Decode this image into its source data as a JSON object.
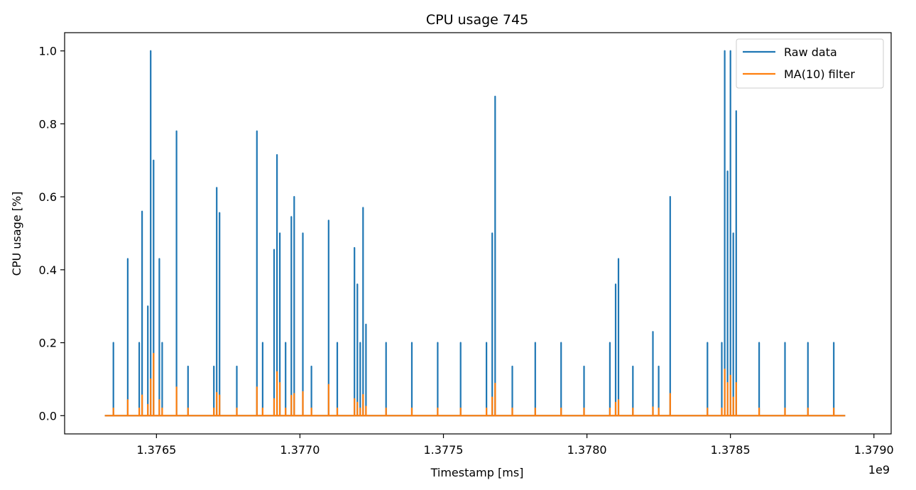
{
  "chart_data": {
    "type": "line",
    "title": "CPU usage 745",
    "xlabel": "Timestamp [ms]",
    "ylabel": "CPU usage [%]",
    "x_offset_label": "1e9",
    "xlim": [
      1.37618,
      1.37906
    ],
    "ylim": [
      -0.05,
      1.05
    ],
    "x_start": 1.37632,
    "x_end": 1.3789,
    "x_ticks": [
      1.3765,
      1.377,
      1.3775,
      1.378,
      1.3785,
      1.379
    ],
    "x_tick_labels": [
      "1.3765",
      "1.3770",
      "1.3775",
      "1.3780",
      "1.3785",
      "1.3790"
    ],
    "y_ticks": [
      0.0,
      0.2,
      0.4,
      0.6,
      0.8,
      1.0
    ],
    "y_tick_labels": [
      "0.0",
      "0.2",
      "0.4",
      "0.6",
      "0.8",
      "1.0"
    ],
    "legend_position": "top-right",
    "grid": false,
    "series": [
      {
        "name": "Raw data",
        "color": "#1f77b4",
        "spikes": [
          [
            1.37635,
            0.2
          ],
          [
            1.3764,
            0.43
          ],
          [
            1.37644,
            0.2
          ],
          [
            1.37645,
            0.56
          ],
          [
            1.37647,
            0.3
          ],
          [
            1.37648,
            0.5
          ],
          [
            1.37648,
            1.0
          ],
          [
            1.37649,
            0.7
          ],
          [
            1.37651,
            0.43
          ],
          [
            1.37652,
            0.2
          ],
          [
            1.37657,
            0.78
          ],
          [
            1.37661,
            0.135
          ],
          [
            1.3767,
            0.135
          ],
          [
            1.37671,
            0.625
          ],
          [
            1.37672,
            0.556
          ],
          [
            1.37678,
            0.135
          ],
          [
            1.37685,
            0.78
          ],
          [
            1.37687,
            0.2
          ],
          [
            1.37691,
            0.455
          ],
          [
            1.37692,
            0.715
          ],
          [
            1.37693,
            0.5
          ],
          [
            1.37695,
            0.2
          ],
          [
            1.37697,
            0.545
          ],
          [
            1.37698,
            0.6
          ],
          [
            1.37701,
            0.5
          ],
          [
            1.37704,
            0.135
          ],
          [
            1.3771,
            0.535
          ],
          [
            1.37713,
            0.2
          ],
          [
            1.37719,
            0.46
          ],
          [
            1.3772,
            0.36
          ],
          [
            1.37721,
            0.2
          ],
          [
            1.37722,
            0.57
          ],
          [
            1.37722,
            0.455
          ],
          [
            1.37723,
            0.25
          ],
          [
            1.3773,
            0.2
          ],
          [
            1.37739,
            0.2
          ],
          [
            1.37748,
            0.2
          ],
          [
            1.37756,
            0.2
          ],
          [
            1.37765,
            0.2
          ],
          [
            1.37767,
            0.5
          ],
          [
            1.37768,
            0.875
          ],
          [
            1.37774,
            0.135
          ],
          [
            1.37782,
            0.2
          ],
          [
            1.37791,
            0.2
          ],
          [
            1.37799,
            0.135
          ],
          [
            1.37808,
            0.2
          ],
          [
            1.3781,
            0.36
          ],
          [
            1.37811,
            0.43
          ],
          [
            1.37816,
            0.135
          ],
          [
            1.37823,
            0.23
          ],
          [
            1.37825,
            0.135
          ],
          [
            1.37829,
            0.6
          ],
          [
            1.37842,
            0.2
          ],
          [
            1.37847,
            0.2
          ],
          [
            1.37848,
            1.0
          ],
          [
            1.37849,
            0.67
          ],
          [
            1.3785,
            1.0
          ],
          [
            1.37851,
            0.5
          ],
          [
            1.37851,
            0.2
          ],
          [
            1.37852,
            0.835
          ],
          [
            1.3786,
            0.2
          ],
          [
            1.37869,
            0.2
          ],
          [
            1.37877,
            0.2
          ],
          [
            1.37886,
            0.2
          ]
        ]
      },
      {
        "name": "MA(10) filter",
        "color": "#ff7f0e",
        "spikes": [
          [
            1.37635,
            0.02
          ],
          [
            1.3764,
            0.043
          ],
          [
            1.37644,
            0.02
          ],
          [
            1.37645,
            0.056
          ],
          [
            1.37647,
            0.03
          ],
          [
            1.37648,
            0.05
          ],
          [
            1.37648,
            0.1
          ],
          [
            1.37649,
            0.17
          ],
          [
            1.37651,
            0.043
          ],
          [
            1.37652,
            0.02
          ],
          [
            1.37657,
            0.078
          ],
          [
            1.37661,
            0.02
          ],
          [
            1.3767,
            0.02
          ],
          [
            1.37671,
            0.063
          ],
          [
            1.37672,
            0.056
          ],
          [
            1.37678,
            0.02
          ],
          [
            1.37685,
            0.078
          ],
          [
            1.37687,
            0.02
          ],
          [
            1.37691,
            0.046
          ],
          [
            1.37692,
            0.12
          ],
          [
            1.37693,
            0.09
          ],
          [
            1.37695,
            0.02
          ],
          [
            1.37697,
            0.055
          ],
          [
            1.37698,
            0.06
          ],
          [
            1.37701,
            0.065
          ],
          [
            1.37704,
            0.02
          ],
          [
            1.3771,
            0.085
          ],
          [
            1.37713,
            0.02
          ],
          [
            1.37719,
            0.046
          ],
          [
            1.3772,
            0.036
          ],
          [
            1.37721,
            0.02
          ],
          [
            1.37722,
            0.057
          ],
          [
            1.37722,
            0.046
          ],
          [
            1.37723,
            0.025
          ],
          [
            1.3773,
            0.02
          ],
          [
            1.37739,
            0.02
          ],
          [
            1.37748,
            0.02
          ],
          [
            1.37756,
            0.02
          ],
          [
            1.37765,
            0.02
          ],
          [
            1.37767,
            0.05
          ],
          [
            1.37768,
            0.088
          ],
          [
            1.37774,
            0.02
          ],
          [
            1.37782,
            0.02
          ],
          [
            1.37791,
            0.02
          ],
          [
            1.37799,
            0.02
          ],
          [
            1.37808,
            0.02
          ],
          [
            1.3781,
            0.036
          ],
          [
            1.37811,
            0.043
          ],
          [
            1.37816,
            0.02
          ],
          [
            1.37823,
            0.023
          ],
          [
            1.37825,
            0.02
          ],
          [
            1.37829,
            0.06
          ],
          [
            1.37842,
            0.02
          ],
          [
            1.37847,
            0.02
          ],
          [
            1.37848,
            0.127
          ],
          [
            1.37849,
            0.09
          ],
          [
            1.3785,
            0.11
          ],
          [
            1.37851,
            0.05
          ],
          [
            1.37851,
            0.02
          ],
          [
            1.37852,
            0.09
          ],
          [
            1.3786,
            0.02
          ],
          [
            1.37869,
            0.02
          ],
          [
            1.37877,
            0.02
          ],
          [
            1.37886,
            0.02
          ]
        ]
      }
    ]
  }
}
